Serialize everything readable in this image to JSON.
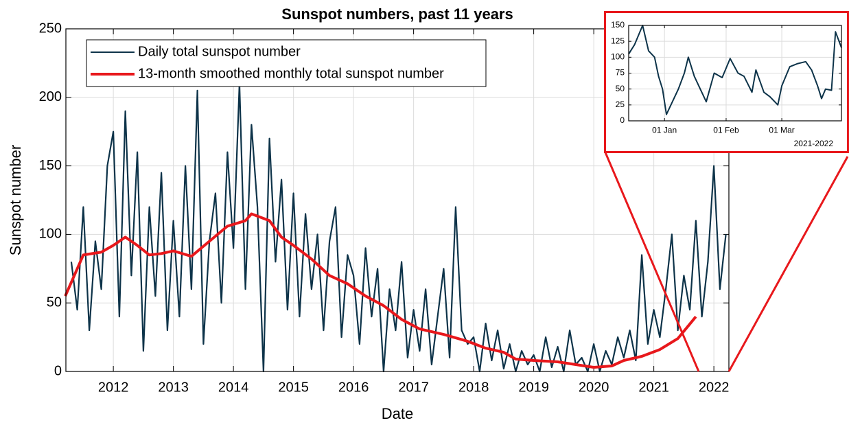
{
  "chart_data": [
    {
      "type": "line",
      "title": "Sunspot numbers, past 11 years",
      "xlabel": "Date",
      "ylabel": "Sunspot number",
      "xlim": [
        2011.21,
        2022.25
      ],
      "xticks": [
        2012,
        2013,
        2014,
        2015,
        2016,
        2017,
        2018,
        2019,
        2020,
        2021,
        2022
      ],
      "ylim": [
        0,
        250
      ],
      "yticks": [
        0,
        50,
        100,
        150,
        200,
        250
      ],
      "grid": true,
      "legend": "upper left",
      "series": [
        {
          "name": "Daily total sunspot number",
          "color": "#0d3349",
          "x": [
            2011.3,
            2011.4,
            2011.5,
            2011.6,
            2011.7,
            2011.8,
            2011.9,
            2012.0,
            2012.1,
            2012.2,
            2012.3,
            2012.4,
            2012.5,
            2012.6,
            2012.7,
            2012.8,
            2012.9,
            2013.0,
            2013.1,
            2013.2,
            2013.3,
            2013.4,
            2013.5,
            2013.6,
            2013.7,
            2013.8,
            2013.9,
            2014.0,
            2014.1,
            2014.2,
            2014.3,
            2014.4,
            2014.5,
            2014.6,
            2014.7,
            2014.8,
            2014.9,
            2015.0,
            2015.1,
            2015.2,
            2015.3,
            2015.4,
            2015.5,
            2015.6,
            2015.7,
            2015.8,
            2015.9,
            2016.0,
            2016.1,
            2016.2,
            2016.3,
            2016.4,
            2016.5,
            2016.6,
            2016.7,
            2016.8,
            2016.9,
            2017.0,
            2017.1,
            2017.2,
            2017.3,
            2017.4,
            2017.5,
            2017.6,
            2017.7,
            2017.8,
            2017.9,
            2018.0,
            2018.1,
            2018.2,
            2018.3,
            2018.4,
            2018.5,
            2018.6,
            2018.7,
            2018.8,
            2018.9,
            2019.0,
            2019.1,
            2019.2,
            2019.3,
            2019.4,
            2019.5,
            2019.6,
            2019.7,
            2019.8,
            2019.9,
            2020.0,
            2020.1,
            2020.2,
            2020.3,
            2020.4,
            2020.5,
            2020.6,
            2020.7,
            2020.8,
            2020.9,
            2021.0,
            2021.1,
            2021.2,
            2021.3,
            2021.4,
            2021.5,
            2021.6,
            2021.7,
            2021.8,
            2021.9,
            2022.0,
            2022.1,
            2022.2
          ],
          "values": [
            80,
            45,
            120,
            30,
            95,
            60,
            150,
            175,
            40,
            190,
            70,
            160,
            15,
            120,
            55,
            145,
            30,
            110,
            40,
            150,
            60,
            205,
            20,
            95,
            130,
            50,
            160,
            90,
            210,
            60,
            180,
            120,
            0,
            170,
            80,
            140,
            45,
            130,
            40,
            115,
            60,
            100,
            30,
            95,
            120,
            25,
            85,
            70,
            20,
            90,
            40,
            75,
            0,
            60,
            30,
            80,
            10,
            45,
            15,
            60,
            5,
            40,
            75,
            10,
            120,
            30,
            20,
            25,
            0,
            35,
            8,
            30,
            2,
            20,
            0,
            15,
            5,
            12,
            0,
            25,
            3,
            18,
            0,
            30,
            5,
            10,
            0,
            20,
            0,
            15,
            5,
            25,
            10,
            30,
            8,
            85,
            20,
            45,
            25,
            60,
            100,
            30,
            70,
            45,
            110,
            40,
            80,
            150,
            60,
            100
          ]
        },
        {
          "name": "13-month smoothed monthly total sunspot number",
          "color": "#e8181c",
          "x": [
            2011.2,
            2011.5,
            2011.8,
            2012.0,
            2012.2,
            2012.4,
            2012.6,
            2012.8,
            2013.0,
            2013.3,
            2013.6,
            2013.9,
            2014.2,
            2014.3,
            2014.6,
            2014.8,
            2015.0,
            2015.3,
            2015.6,
            2015.9,
            2016.2,
            2016.5,
            2016.8,
            2017.1,
            2017.5,
            2017.9,
            2018.2,
            2018.5,
            2018.7,
            2019.0,
            2019.4,
            2019.7,
            2020.0,
            2020.3,
            2020.5,
            2020.8,
            2021.1,
            2021.4,
            2021.7
          ],
          "values": [
            55,
            85,
            87,
            92,
            98,
            92,
            85,
            86,
            88,
            84,
            95,
            106,
            110,
            115,
            110,
            98,
            92,
            82,
            70,
            64,
            55,
            48,
            38,
            31,
            27,
            22,
            17,
            14,
            9,
            8,
            7,
            5,
            3,
            4,
            8,
            11,
            16,
            24,
            40
          ]
        }
      ]
    },
    {
      "type": "line",
      "xlabel": "2021-2022",
      "xlim": [
        "2021-12-14",
        "2022-03-31"
      ],
      "xticks": [
        {
          "value": "2022-01-01",
          "label": "01 Jan"
        },
        {
          "value": "2022-02-01",
          "label": "01 Feb"
        },
        {
          "value": "2022-03-01",
          "label": "01 Mar"
        }
      ],
      "ylim": [
        0,
        150
      ],
      "yticks": [
        0,
        25,
        50,
        75,
        100,
        125,
        150
      ],
      "grid": true,
      "series": [
        {
          "color": "#0d3349",
          "x": [
            "2021-12-14",
            "2021-12-17",
            "2021-12-21",
            "2021-12-24",
            "2021-12-27",
            "2021-12-29",
            "2021-12-31",
            "2022-01-02",
            "2022-01-05",
            "2022-01-08",
            "2022-01-11",
            "2022-01-13",
            "2022-01-16",
            "2022-01-19",
            "2022-01-22",
            "2022-01-26",
            "2022-01-30",
            "2022-02-03",
            "2022-02-07",
            "2022-02-10",
            "2022-02-14",
            "2022-02-16",
            "2022-02-20",
            "2022-02-23",
            "2022-02-27",
            "2022-03-01",
            "2022-03-05",
            "2022-03-09",
            "2022-03-13",
            "2022-03-16",
            "2022-03-19",
            "2022-03-21",
            "2022-03-23",
            "2022-03-26",
            "2022-03-28",
            "2022-03-31"
          ],
          "values": [
            105,
            120,
            150,
            110,
            100,
            70,
            50,
            10,
            30,
            50,
            75,
            100,
            70,
            50,
            30,
            75,
            68,
            98,
            75,
            70,
            45,
            80,
            45,
            38,
            25,
            55,
            85,
            90,
            93,
            80,
            55,
            35,
            50,
            48,
            140,
            115
          ]
        }
      ]
    }
  ]
}
